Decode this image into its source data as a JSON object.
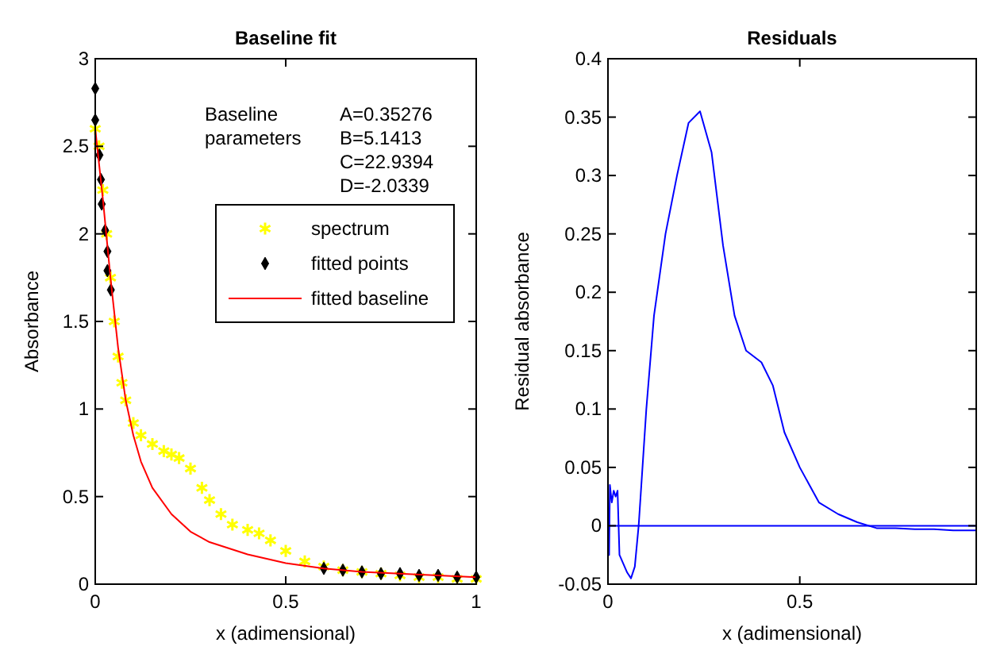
{
  "chart_data": [
    {
      "type": "line",
      "title": "Baseline fit",
      "xlabel": "x (adimensional)",
      "ylabel": "Absorbance",
      "xlim": [
        0,
        1
      ],
      "ylim": [
        0,
        3
      ],
      "xticks": [
        0,
        0.5,
        1
      ],
      "yticks": [
        0,
        0.5,
        1,
        1.5,
        2,
        2.5,
        3
      ],
      "legend": "top right",
      "grid": false,
      "annotations": [
        "Baseline parameters",
        "A=0.35276",
        "B=5.1413",
        "C=22.9394",
        "D=-2.0339"
      ],
      "series": [
        {
          "name": "spectrum",
          "type": "scatter",
          "marker": "cross",
          "color": "#ffff00",
          "x": [
            0,
            0.01,
            0.02,
            0.03,
            0.04,
            0.05,
            0.06,
            0.07,
            0.08,
            0.1,
            0.12,
            0.15,
            0.18,
            0.2,
            0.22,
            0.25,
            0.28,
            0.3,
            0.33,
            0.36,
            0.4,
            0.43,
            0.46,
            0.5,
            0.55,
            0.6,
            0.65,
            0.7,
            0.75,
            0.8,
            0.85,
            0.9,
            0.95,
            1
          ],
          "values": [
            2.6,
            2.5,
            2.25,
            2.0,
            1.75,
            1.5,
            1.3,
            1.15,
            1.05,
            0.92,
            0.85,
            0.8,
            0.76,
            0.74,
            0.72,
            0.66,
            0.55,
            0.48,
            0.4,
            0.34,
            0.31,
            0.29,
            0.25,
            0.19,
            0.13,
            0.1,
            0.08,
            0.07,
            0.06,
            0.05,
            0.04,
            0.04,
            0.03,
            0.03
          ]
        },
        {
          "name": "fitted points",
          "type": "scatter",
          "marker": "diamond",
          "color": "#000000",
          "x": [
            0,
            0,
            0.011,
            0.015,
            0.017,
            0.026,
            0.032,
            0.032,
            0.041,
            0.6,
            0.65,
            0.7,
            0.75,
            0.8,
            0.85,
            0.9,
            0.95,
            1
          ],
          "values": [
            2.83,
            2.65,
            2.45,
            2.31,
            2.17,
            2.02,
            1.9,
            1.79,
            1.68,
            0.09,
            0.08,
            0.07,
            0.06,
            0.06,
            0.05,
            0.05,
            0.04,
            0.04
          ]
        },
        {
          "name": "fitted baseline",
          "type": "line",
          "marker": "none",
          "color": "#ff0000",
          "x": [
            0,
            0.02,
            0.04,
            0.06,
            0.08,
            0.1,
            0.12,
            0.15,
            0.2,
            0.25,
            0.3,
            0.4,
            0.5,
            0.6,
            0.7,
            0.8,
            0.9,
            1
          ],
          "values": [
            2.6,
            2.2,
            1.75,
            1.35,
            1.05,
            0.85,
            0.7,
            0.55,
            0.4,
            0.3,
            0.24,
            0.17,
            0.12,
            0.09,
            0.07,
            0.06,
            0.05,
            0.04
          ]
        }
      ]
    },
    {
      "type": "line",
      "title": "Residuals",
      "xlabel": "x (adimensional)",
      "ylabel": "Residual absorbance",
      "xlim": [
        0,
        0.96
      ],
      "ylim": [
        -0.05,
        0.4
      ],
      "xticks": [
        0,
        0.5
      ],
      "yticks": [
        -0.05,
        0,
        0.05,
        0.1,
        0.15,
        0.2,
        0.25,
        0.3,
        0.35,
        0.4
      ],
      "legend": false,
      "grid": false,
      "ref_lines": [
        {
          "axis": "y",
          "value": 0,
          "color": "#0000ff"
        }
      ],
      "series": [
        {
          "type": "line",
          "marker": "none",
          "color": "#0000ff",
          "x": [
            0,
            0.003,
            0.005,
            0.01,
            0.015,
            0.02,
            0.025,
            0.03,
            0.05,
            0.06,
            0.07,
            0.08,
            0.1,
            0.12,
            0.15,
            0.18,
            0.21,
            0.24,
            0.27,
            0.3,
            0.33,
            0.36,
            0.4,
            0.43,
            0.46,
            0.5,
            0.55,
            0.6,
            0.65,
            0.7,
            0.75,
            0.8,
            0.85,
            0.9,
            0.96
          ],
          "values": [
            0,
            -0.025,
            0.035,
            0.02,
            0.03,
            0.025,
            0.03,
            -0.025,
            -0.04,
            -0.045,
            -0.035,
            0,
            0.1,
            0.18,
            0.25,
            0.3,
            0.345,
            0.355,
            0.32,
            0.24,
            0.18,
            0.15,
            0.14,
            0.12,
            0.08,
            0.05,
            0.02,
            0.01,
            0.003,
            -0.002,
            -0.002,
            -0.003,
            -0.003,
            -0.004,
            -0.004
          ]
        }
      ]
    }
  ]
}
